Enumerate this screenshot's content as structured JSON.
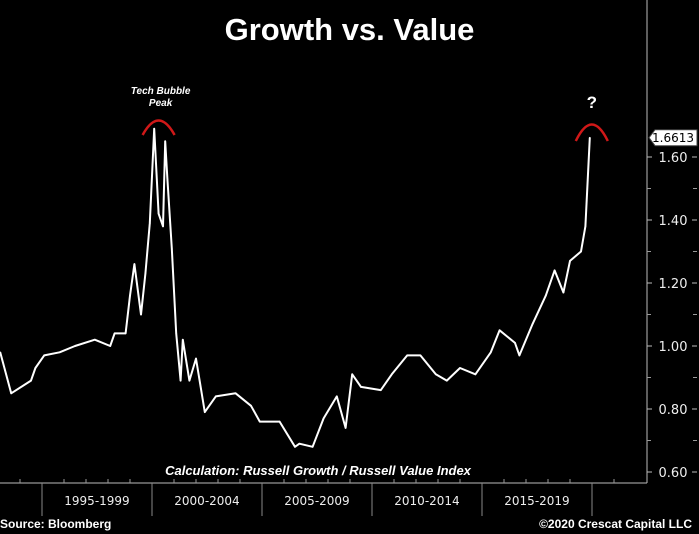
{
  "chart_data": {
    "type": "line",
    "title": "Growth vs. Value",
    "subtitle": "Calculation: Russell Growth / Russell Value Index",
    "xlabel": "",
    "ylabel": "",
    "x_tick_labels": [
      "1995-1999",
      "2000-2004",
      "2005-2009",
      "2010-2014",
      "2015-2019"
    ],
    "y_ticks": [
      0.6,
      0.8,
      1.0,
      1.2,
      1.4,
      1.6
    ],
    "y_tick_labels": [
      "0.60",
      "0.80",
      "1.00",
      "1.20",
      "1.40",
      "1.60"
    ],
    "ylim": [
      0.56,
      1.78
    ],
    "xlim": [
      1993.1,
      2021.0
    ],
    "grid": false,
    "line_color": "#ffffff",
    "last_value_label": "1.6613",
    "annotations": [
      {
        "text": "Tech Bubble Peak",
        "year": 2000.3,
        "color": "#d01818"
      },
      {
        "text": "?",
        "year": 2019.9,
        "color": "#d01818"
      }
    ],
    "series": [
      {
        "x": [
          1993.1,
          1993.6,
          1994.5,
          1994.7,
          1995.1,
          1995.8,
          1996.5,
          1997.4,
          1998.1,
          1998.3,
          1998.8,
          1999.0,
          1999.2,
          1999.5,
          1999.7,
          1999.9,
          2000.1,
          2000.3,
          2000.5,
          2000.6,
          2000.7,
          2000.9,
          2001.1,
          2001.3,
          2001.4,
          2001.7,
          2002.0,
          2002.4,
          2002.9,
          2003.8,
          2004.5,
          2004.9,
          2005.8,
          2006.5,
          2006.7,
          2007.3,
          2007.8,
          2008.4,
          2008.8,
          2009.1,
          2009.5,
          2010.4,
          2010.9,
          2011.6,
          2012.2,
          2012.9,
          2013.4,
          2014.0,
          2014.7,
          2015.4,
          2015.8,
          2016.5,
          2016.7,
          2017.3,
          2017.9,
          2018.3,
          2018.7,
          2019.0,
          2019.5,
          2019.7,
          2019.9
        ],
        "y": [
          0.98,
          0.85,
          0.89,
          0.93,
          0.97,
          0.98,
          1.0,
          1.02,
          1.0,
          1.04,
          1.04,
          1.16,
          1.26,
          1.1,
          1.23,
          1.39,
          1.69,
          1.42,
          1.38,
          1.65,
          1.53,
          1.31,
          1.04,
          0.89,
          1.02,
          0.89,
          0.96,
          0.79,
          0.84,
          0.85,
          0.81,
          0.76,
          0.76,
          0.68,
          0.69,
          0.68,
          0.77,
          0.84,
          0.74,
          0.91,
          0.87,
          0.86,
          0.91,
          0.97,
          0.97,
          0.91,
          0.89,
          0.93,
          0.91,
          0.98,
          1.05,
          1.01,
          0.97,
          1.07,
          1.16,
          1.24,
          1.17,
          1.27,
          1.3,
          1.38,
          1.6613
        ]
      }
    ]
  },
  "footer": {
    "source": "Source: Bloomberg",
    "copyright": "©2020 Crescat Capital LLC"
  }
}
